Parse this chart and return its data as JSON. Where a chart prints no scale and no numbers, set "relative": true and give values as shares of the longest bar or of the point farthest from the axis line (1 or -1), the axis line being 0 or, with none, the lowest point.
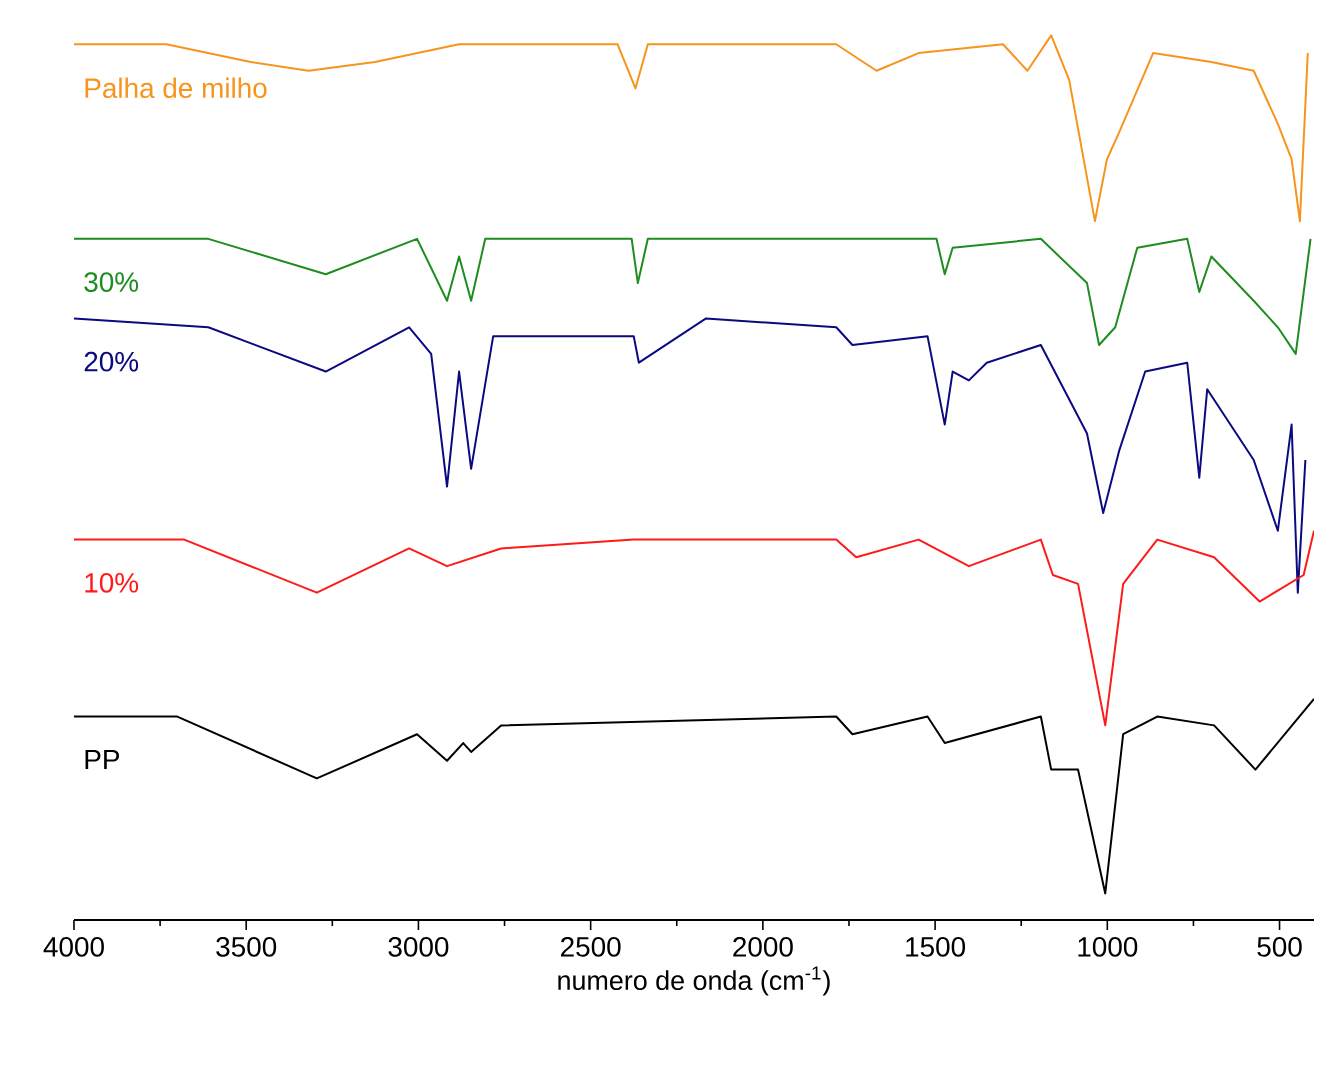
{
  "chart_data": {
    "type": "line",
    "relative": true,
    "xlabel": "numero de onda (cm$^{-1}$)",
    "xlim": [
      4000,
      400
    ],
    "xticks": [
      4000,
      3500,
      3000,
      2500,
      2000,
      1500,
      1000,
      500
    ],
    "series": [
      {
        "name": "Palha de milho",
        "color": "#f7941d",
        "x": [
          4000,
          3732,
          3487,
          3319,
          3126,
          2882,
          2422,
          2370,
          2334,
          1787,
          1670,
          1548,
          1303,
          1232,
          1163,
          1111,
          1036,
          1001,
          966,
          867,
          698,
          575,
          505,
          465,
          441,
          418
        ],
        "values": [
          0.99,
          0.99,
          0.97,
          0.96,
          0.97,
          0.99,
          0.99,
          0.94,
          0.99,
          0.99,
          0.96,
          0.98,
          0.99,
          0.96,
          1.0,
          0.95,
          0.79,
          0.86,
          0.89,
          0.98,
          0.97,
          0.96,
          0.9,
          0.86,
          0.79,
          0.98
        ]
      },
      {
        "name": "30%",
        "color": "#1e8c1e",
        "x": [
          4000,
          3610,
          3269,
          3004,
          2917,
          2882,
          2847,
          2806,
          2381,
          2363,
          2334,
          1496,
          1472,
          1449,
          1193,
          1059,
          1024,
          977,
          913,
          768,
          733,
          698,
          575,
          505,
          453,
          410
        ],
        "values": [
          0.77,
          0.77,
          0.73,
          0.77,
          0.7,
          0.75,
          0.7,
          0.77,
          0.77,
          0.72,
          0.77,
          0.77,
          0.73,
          0.76,
          0.77,
          0.72,
          0.65,
          0.67,
          0.76,
          0.77,
          0.71,
          0.75,
          0.7,
          0.67,
          0.64,
          0.77
        ]
      },
      {
        "name": "20%",
        "color": "#0a0a80",
        "x": [
          4000,
          3610,
          3269,
          3027,
          2963,
          2917,
          2882,
          2847,
          2783,
          2375,
          2360,
          2165,
          1787,
          1740,
          1522,
          1472,
          1449,
          1402,
          1350,
          1193,
          1059,
          1012,
          966,
          890,
          768,
          733,
          710,
          575,
          505,
          465,
          447,
          425
        ],
        "values": [
          0.68,
          0.67,
          0.62,
          0.67,
          0.64,
          0.49,
          0.62,
          0.51,
          0.66,
          0.66,
          0.63,
          0.68,
          0.67,
          0.65,
          0.66,
          0.56,
          0.62,
          0.61,
          0.63,
          0.65,
          0.55,
          0.46,
          0.53,
          0.62,
          0.63,
          0.5,
          0.6,
          0.52,
          0.44,
          0.56,
          0.37,
          0.52
        ]
      },
      {
        "name": "10%",
        "color": "#ff1a1a",
        "x": [
          4000,
          3680,
          3295,
          3027,
          2917,
          2760,
          2375,
          1787,
          1729,
          1548,
          1402,
          1193,
          1158,
          1085,
          1006,
          954,
          855,
          690,
          558,
          430,
          400
        ],
        "values": [
          0.43,
          0.43,
          0.37,
          0.42,
          0.4,
          0.42,
          0.43,
          0.43,
          0.41,
          0.43,
          0.4,
          0.43,
          0.39,
          0.38,
          0.22,
          0.38,
          0.43,
          0.41,
          0.36,
          0.39,
          0.44
        ]
      },
      {
        "name": "PP",
        "color": "#000000",
        "x": [
          4000,
          3700,
          3295,
          3004,
          2917,
          2870,
          2847,
          2760,
          1787,
          1740,
          1522,
          1472,
          1193,
          1163,
          1085,
          1006,
          954,
          855,
          690,
          570,
          400
        ],
        "values": [
          0.23,
          0.23,
          0.16,
          0.21,
          0.18,
          0.2,
          0.19,
          0.22,
          0.23,
          0.21,
          0.23,
          0.2,
          0.23,
          0.17,
          0.17,
          0.03,
          0.21,
          0.23,
          0.22,
          0.17,
          0.25
        ]
      }
    ]
  }
}
